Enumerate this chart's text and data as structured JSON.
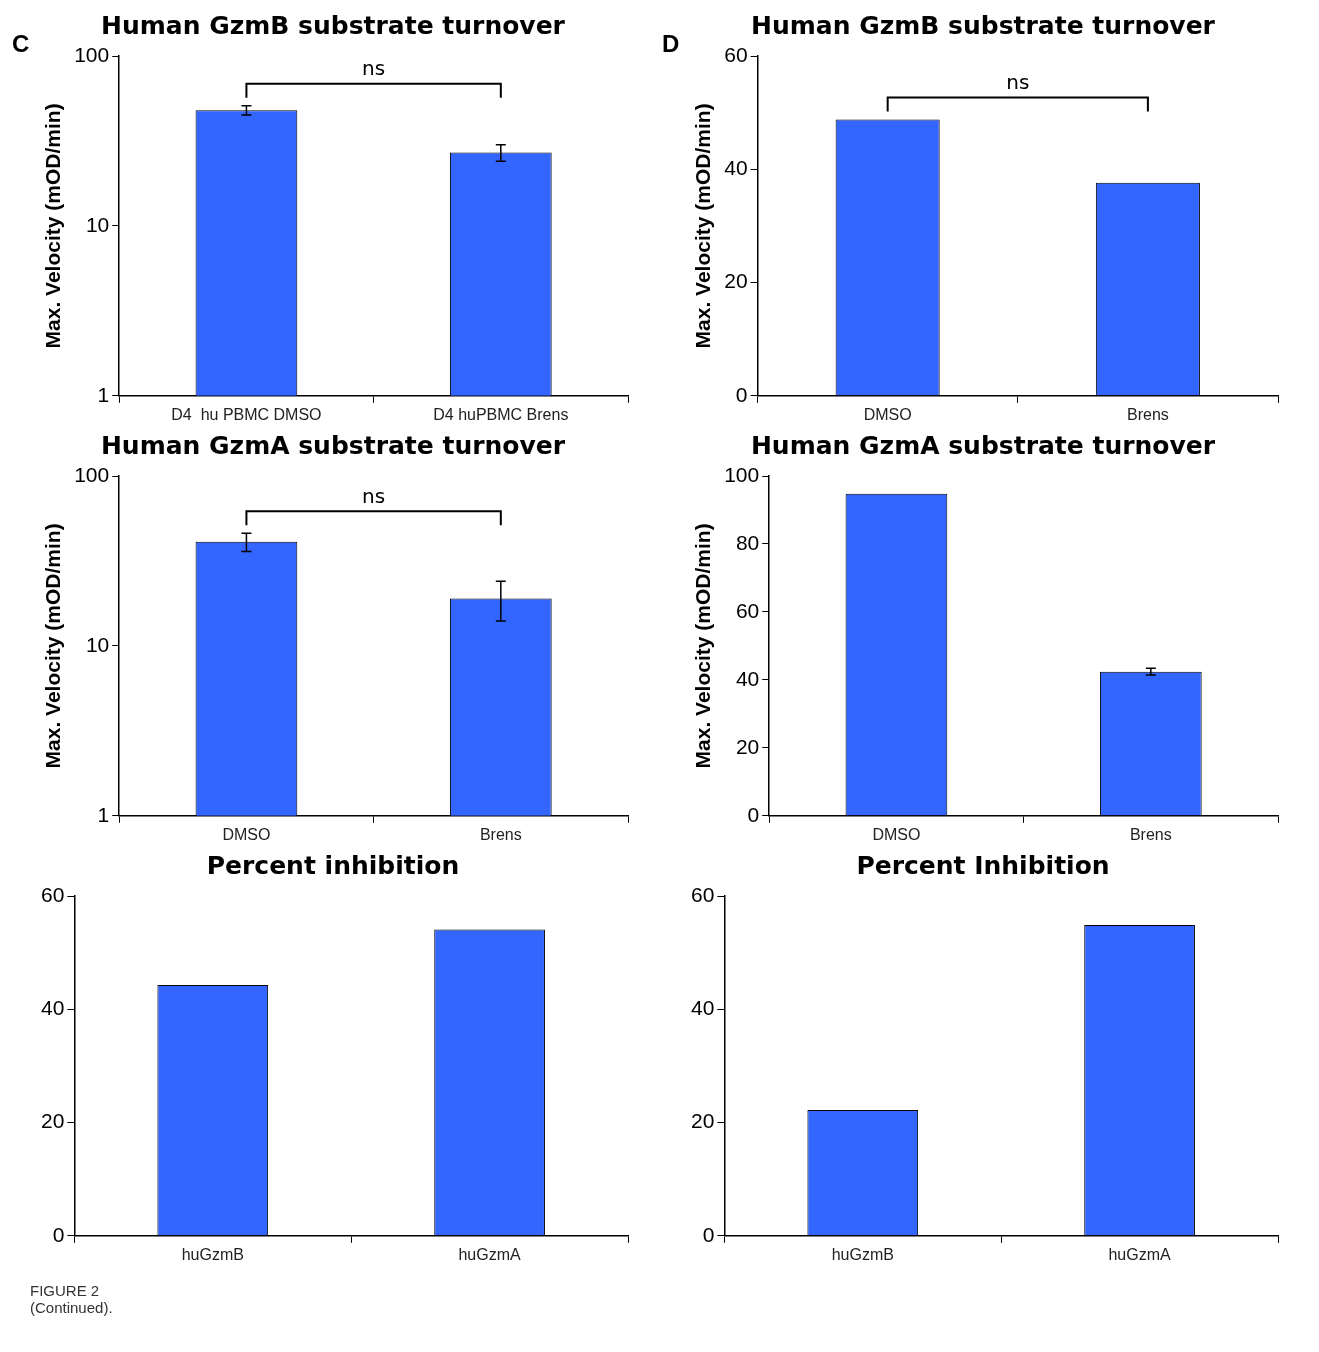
{
  "chart_data": [
    {
      "type": "bar",
      "title": "Human GzmB substrate turnover",
      "ylabel": "Max. Velocity (mOD/min)",
      "categories": [
        "D4  hu PBMC DMSO",
        "D4 huPBMC Brens"
      ],
      "values": [
        48,
        27
      ],
      "errors": [
        3,
        3
      ],
      "color": "#3366ff",
      "log": true,
      "ylim": [
        1,
        100
      ],
      "yticks": [
        1,
        10,
        100
      ],
      "annotations": [
        "C",
        "ns"
      ]
    },
    {
      "type": "bar",
      "title": "Human GzmB substrate turnover",
      "ylabel": "Max. Velocity (mOD/min)",
      "categories": [
        "DMSO",
        "Brens"
      ],
      "values": [
        48.8,
        37.6
      ],
      "color": "#3366ff",
      "ylim": [
        0,
        60
      ],
      "yticks": [
        0,
        20,
        40,
        60
      ],
      "annotations": [
        "D",
        "ns"
      ]
    },
    {
      "type": "bar",
      "title": "Human GzmA substrate turnover",
      "ylabel": "Max. Velocity (mOD/min)",
      "categories": [
        "DMSO",
        "Brens"
      ],
      "values": [
        41,
        19
      ],
      "errors": [
        5,
        5
      ],
      "color": "#3366ff",
      "log": true,
      "ylim": [
        1,
        100
      ],
      "yticks": [
        1,
        10,
        100
      ],
      "annotations": [
        "ns"
      ]
    },
    {
      "type": "bar",
      "title": "Human GzmA substrate turnover",
      "ylabel": "Max. Velocity (mOD/min)",
      "categories": [
        "DMSO",
        "Brens"
      ],
      "values": [
        94.8,
        42.4
      ],
      "errors": [
        null,
        1
      ],
      "color": "#3366ff",
      "ylim": [
        0,
        100
      ],
      "yticks": [
        0,
        20,
        40,
        60,
        80,
        100
      ]
    },
    {
      "type": "bar",
      "title": "Percent inhibition",
      "categories": [
        "huGzmB",
        "huGzmA"
      ],
      "values": [
        44.3,
        54.1
      ],
      "color": "#3366ff",
      "ylim": [
        0,
        60
      ],
      "yticks": [
        0,
        20,
        40,
        60
      ],
      "annotations": [
        "FIGURE 2",
        "(Continued)."
      ]
    },
    {
      "type": "bar",
      "title": "Percent Inhibition",
      "categories": [
        "huGzmB",
        "huGzmA"
      ],
      "values": [
        22.2,
        54.9
      ],
      "color": "#3366ff",
      "ylim": [
        0,
        60
      ],
      "yticks": [
        0,
        20,
        40,
        60
      ]
    }
  ]
}
